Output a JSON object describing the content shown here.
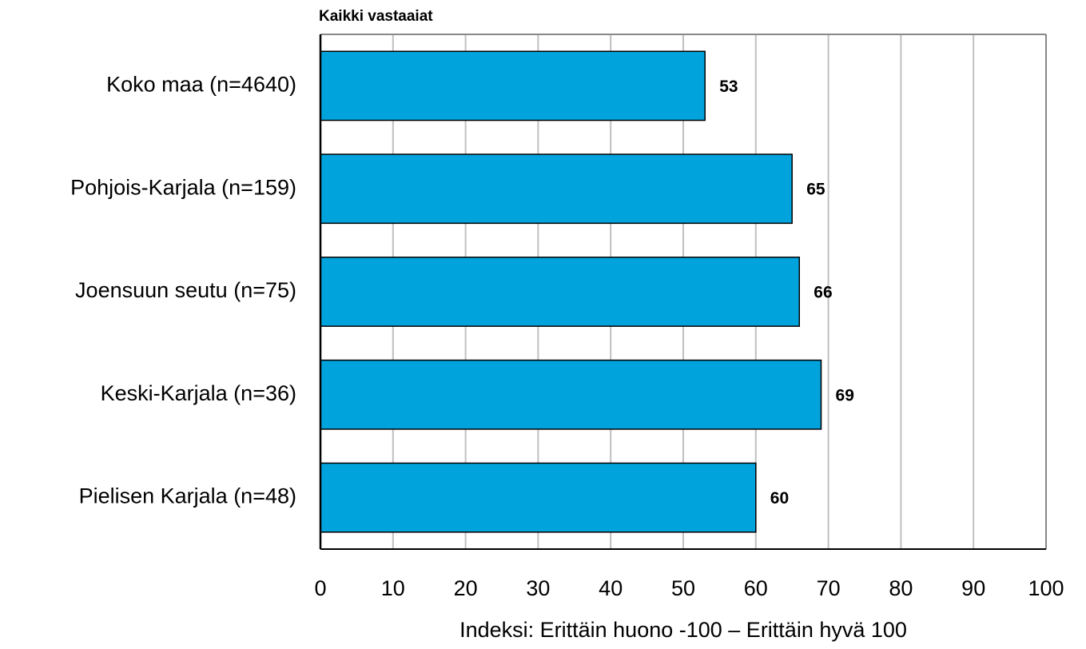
{
  "chart_data": {
    "type": "bar",
    "orientation": "horizontal",
    "title": "Kaikki vastaaiat",
    "x_label": "Indeksi: Erittäin huono -100 – Erittäin hyvä 100",
    "categories": [
      "Koko maa (n=4640)",
      "Pohjois-Karjala (n=159)",
      "Joensuun seutu (n=75)",
      "Keski-Karjala (n=36)",
      "Pielisen Karjala (n=48)"
    ],
    "values": [
      53,
      65,
      66,
      69,
      60
    ],
    "color": "#00a3dc",
    "xlim": [
      0,
      100
    ],
    "xticks": [
      0,
      10,
      20,
      30,
      40,
      50,
      60,
      70,
      80,
      90,
      100
    ],
    "grid": true
  }
}
